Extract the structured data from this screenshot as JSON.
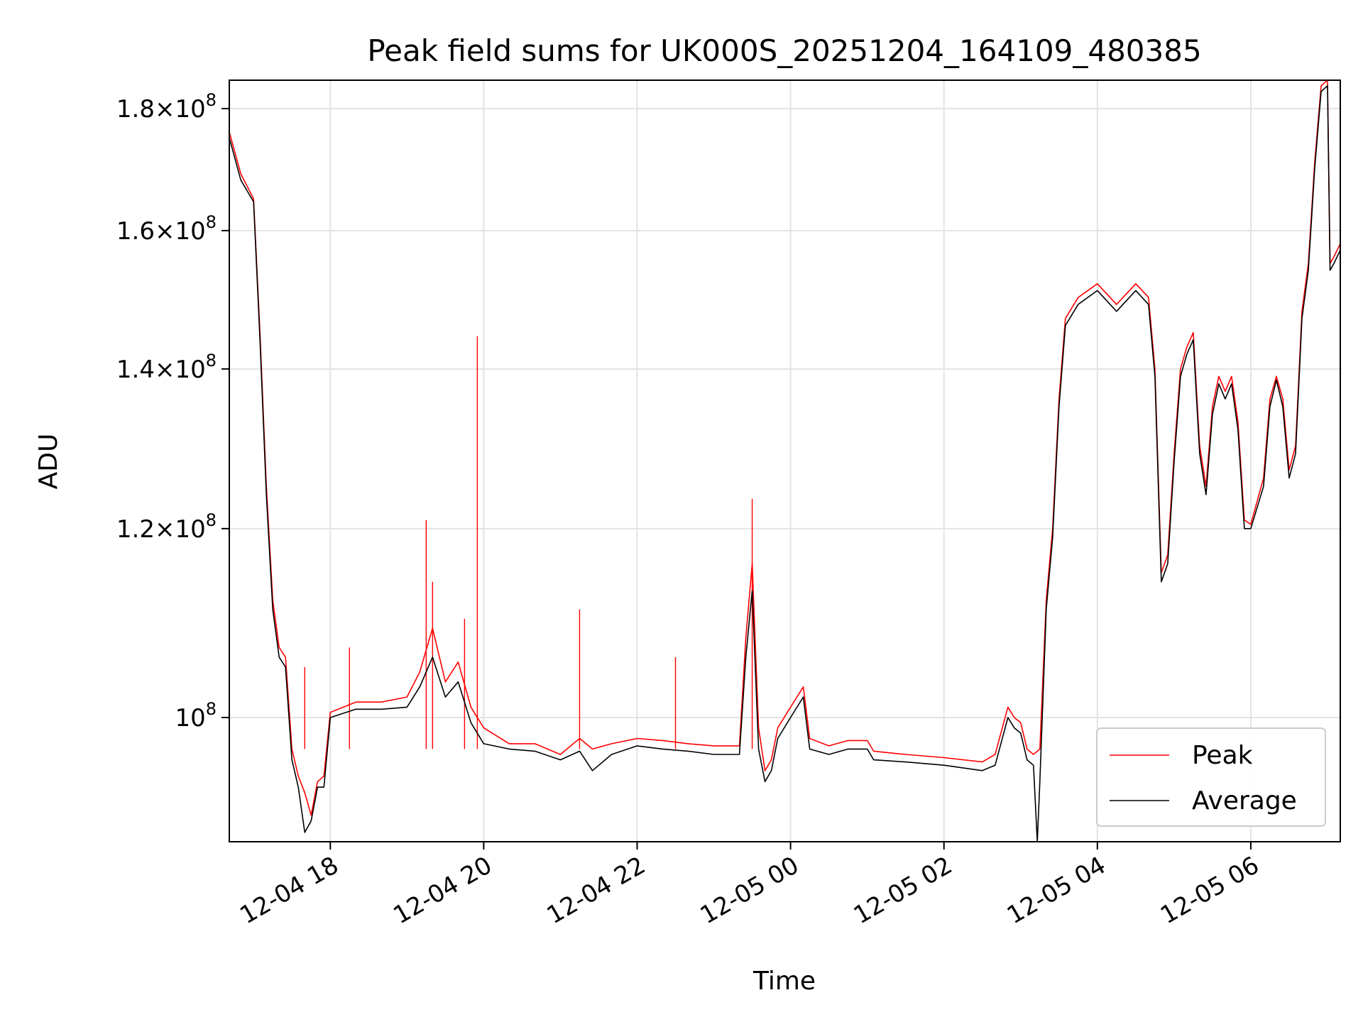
{
  "chart_data": {
    "type": "line",
    "title": "Peak field sums for UK000S_20251204_164109_480385",
    "xlabel": "Time",
    "ylabel": "ADU",
    "yscale": "log",
    "grid": true,
    "legend_position": "lower-right",
    "xlim": [
      "2025-12-04 16:41",
      "2025-12-05 07:10"
    ],
    "ylim": [
      88700000,
      185000000
    ],
    "x_ticks": [
      {
        "value": "2025-12-04 18:00",
        "label": "12-04 18"
      },
      {
        "value": "2025-12-04 20:00",
        "label": "12-04 20"
      },
      {
        "value": "2025-12-04 22:00",
        "label": "12-04 22"
      },
      {
        "value": "2025-12-05 00:00",
        "label": "12-05 00"
      },
      {
        "value": "2025-12-05 02:00",
        "label": "12-05 02"
      },
      {
        "value": "2025-12-05 04:00",
        "label": "12-05 04"
      },
      {
        "value": "2025-12-05 06:00",
        "label": "12-05 06"
      }
    ],
    "y_ticks": [
      {
        "value": 100000000,
        "mantissa": "",
        "exponent": "8"
      },
      {
        "value": 120000000,
        "mantissa": "1.2",
        "exponent": "8"
      },
      {
        "value": 140000000,
        "mantissa": "1.4",
        "exponent": "8"
      },
      {
        "value": 160000000,
        "mantissa": "1.6",
        "exponent": "8"
      },
      {
        "value": 180000000,
        "mantissa": "1.8",
        "exponent": "8"
      }
    ],
    "series": [
      {
        "name": "Peak",
        "color": "#ff0000",
        "points": [
          [
            "2025-12-04 16:41",
            176000000
          ],
          [
            "2025-12-04 16:50",
            169000000
          ],
          [
            "2025-12-04 17:00",
            165000000
          ],
          [
            "2025-12-04 17:05",
            145000000
          ],
          [
            "2025-12-04 17:10",
            125000000
          ],
          [
            "2025-12-04 17:15",
            112000000
          ],
          [
            "2025-12-04 17:20",
            107000000
          ],
          [
            "2025-12-04 17:25",
            106000000
          ],
          [
            "2025-12-04 17:30",
            97000000
          ],
          [
            "2025-12-04 17:35",
            94500000
          ],
          [
            "2025-12-04 17:40",
            93000000
          ],
          [
            "2025-12-04 17:45",
            91000000
          ],
          [
            "2025-12-04 17:50",
            94000000
          ],
          [
            "2025-12-04 17:55",
            94500000
          ],
          [
            "2025-12-04 18:00",
            100500000
          ],
          [
            "2025-12-04 18:20",
            101500000
          ],
          [
            "2025-12-04 18:40",
            101500000
          ],
          [
            "2025-12-04 19:00",
            102000000
          ],
          [
            "2025-12-04 19:10",
            104500000
          ],
          [
            "2025-12-04 19:20",
            109000000
          ],
          [
            "2025-12-04 19:30",
            103500000
          ],
          [
            "2025-12-04 19:40",
            105500000
          ],
          [
            "2025-12-04 19:50",
            101000000
          ],
          [
            "2025-12-04 20:00",
            99000000
          ],
          [
            "2025-12-04 20:20",
            97500000
          ],
          [
            "2025-12-04 20:40",
            97500000
          ],
          [
            "2025-12-04 21:00",
            96500000
          ],
          [
            "2025-12-04 21:15",
            98000000
          ],
          [
            "2025-12-04 21:25",
            97000000
          ],
          [
            "2025-12-04 21:40",
            97500000
          ],
          [
            "2025-12-04 22:00",
            98000000
          ],
          [
            "2025-12-04 22:20",
            97800000
          ],
          [
            "2025-12-04 22:40",
            97500000
          ],
          [
            "2025-12-04 23:00",
            97300000
          ],
          [
            "2025-12-04 23:20",
            97300000
          ],
          [
            "2025-12-04 23:25",
            108000000
          ],
          [
            "2025-12-04 23:30",
            116000000
          ],
          [
            "2025-12-04 23:35",
            99000000
          ],
          [
            "2025-12-04 23:40",
            95000000
          ],
          [
            "2025-12-04 23:45",
            96000000
          ],
          [
            "2025-12-04 23:50",
            99000000
          ],
          [
            "2025-12-05 00:00",
            101000000
          ],
          [
            "2025-12-05 00:10",
            103000000
          ],
          [
            "2025-12-05 00:15",
            98000000
          ],
          [
            "2025-12-05 00:30",
            97300000
          ],
          [
            "2025-12-05 00:45",
            97800000
          ],
          [
            "2025-12-05 01:00",
            97800000
          ],
          [
            "2025-12-05 01:05",
            96800000
          ],
          [
            "2025-12-05 01:30",
            96500000
          ],
          [
            "2025-12-05 02:00",
            96200000
          ],
          [
            "2025-12-05 02:30",
            95800000
          ],
          [
            "2025-12-05 02:40",
            96500000
          ],
          [
            "2025-12-05 02:50",
            101000000
          ],
          [
            "2025-12-05 02:55",
            100000000
          ],
          [
            "2025-12-05 03:00",
            99500000
          ],
          [
            "2025-12-05 03:05",
            97000000
          ],
          [
            "2025-12-05 03:10",
            96500000
          ],
          [
            "2025-12-05 03:15",
            97000000
          ],
          [
            "2025-12-05 03:20",
            112000000
          ],
          [
            "2025-12-05 03:25",
            120000000
          ],
          [
            "2025-12-05 03:30",
            136000000
          ],
          [
            "2025-12-05 03:35",
            147000000
          ],
          [
            "2025-12-05 03:45",
            150000000
          ],
          [
            "2025-12-05 04:00",
            152000000
          ],
          [
            "2025-12-05 04:15",
            149000000
          ],
          [
            "2025-12-05 04:30",
            152000000
          ],
          [
            "2025-12-05 04:40",
            150000000
          ],
          [
            "2025-12-05 04:45",
            140000000
          ],
          [
            "2025-12-05 04:50",
            115000000
          ],
          [
            "2025-12-05 04:55",
            117000000
          ],
          [
            "2025-12-05 05:00",
            129000000
          ],
          [
            "2025-12-05 05:05",
            140000000
          ],
          [
            "2025-12-05 05:10",
            143000000
          ],
          [
            "2025-12-05 05:15",
            145000000
          ],
          [
            "2025-12-05 05:20",
            130000000
          ],
          [
            "2025-12-05 05:25",
            125000000
          ],
          [
            "2025-12-05 05:30",
            135000000
          ],
          [
            "2025-12-05 05:35",
            139000000
          ],
          [
            "2025-12-05 05:40",
            137000000
          ],
          [
            "2025-12-05 05:45",
            139000000
          ],
          [
            "2025-12-05 05:50",
            133000000
          ],
          [
            "2025-12-05 05:55",
            121000000
          ],
          [
            "2025-12-05 06:00",
            120500000
          ],
          [
            "2025-12-05 06:10",
            126000000
          ],
          [
            "2025-12-05 06:15",
            136000000
          ],
          [
            "2025-12-05 06:20",
            139000000
          ],
          [
            "2025-12-05 06:25",
            136000000
          ],
          [
            "2025-12-05 06:30",
            127000000
          ],
          [
            "2025-12-05 06:35",
            130000000
          ],
          [
            "2025-12-05 06:40",
            148000000
          ],
          [
            "2025-12-05 06:45",
            155000000
          ],
          [
            "2025-12-05 06:50",
            171000000
          ],
          [
            "2025-12-05 06:55",
            184000000
          ],
          [
            "2025-12-05 07:00",
            185000000
          ],
          [
            "2025-12-05 07:02",
            155000000
          ],
          [
            "2025-12-05 07:05",
            156000000
          ],
          [
            "2025-12-05 07:10",
            158000000
          ]
        ],
        "spikes": [
          [
            "2025-12-04 19:55",
            144500000
          ],
          [
            "2025-12-04 19:15",
            121000000
          ],
          [
            "2025-12-04 23:30",
            123500000
          ],
          [
            "2025-12-04 21:15",
            111000000
          ],
          [
            "2025-12-04 19:20",
            114000000
          ],
          [
            "2025-12-04 17:40",
            105000000
          ],
          [
            "2025-12-04 18:15",
            107000000
          ],
          [
            "2025-12-04 19:45",
            110000000
          ],
          [
            "2025-12-04 22:30",
            106000000
          ]
        ]
      },
      {
        "name": "Average",
        "color": "#000000",
        "points": [
          [
            "2025-12-04 16:41",
            175000000
          ],
          [
            "2025-12-04 16:50",
            168000000
          ],
          [
            "2025-12-04 17:00",
            164500000
          ],
          [
            "2025-12-04 17:05",
            144000000
          ],
          [
            "2025-12-04 17:10",
            124000000
          ],
          [
            "2025-12-04 17:15",
            111000000
          ],
          [
            "2025-12-04 17:20",
            106000000
          ],
          [
            "2025-12-04 17:25",
            105000000
          ],
          [
            "2025-12-04 17:30",
            96000000
          ],
          [
            "2025-12-04 17:35",
            93500000
          ],
          [
            "2025-12-04 17:40",
            89500000
          ],
          [
            "2025-12-04 17:45",
            90500000
          ],
          [
            "2025-12-04 17:50",
            93500000
          ],
          [
            "2025-12-04 17:55",
            93500000
          ],
          [
            "2025-12-04 18:00",
            100000000
          ],
          [
            "2025-12-04 18:20",
            100800000
          ],
          [
            "2025-12-04 18:40",
            100800000
          ],
          [
            "2025-12-04 19:00",
            101000000
          ],
          [
            "2025-12-04 19:10",
            103000000
          ],
          [
            "2025-12-04 19:20",
            106000000
          ],
          [
            "2025-12-04 19:30",
            102000000
          ],
          [
            "2025-12-04 19:40",
            103500000
          ],
          [
            "2025-12-04 19:50",
            99500000
          ],
          [
            "2025-12-04 20:00",
            97500000
          ],
          [
            "2025-12-04 20:20",
            97000000
          ],
          [
            "2025-12-04 20:40",
            96800000
          ],
          [
            "2025-12-04 21:00",
            96000000
          ],
          [
            "2025-12-04 21:15",
            96800000
          ],
          [
            "2025-12-04 21:25",
            95000000
          ],
          [
            "2025-12-04 21:40",
            96500000
          ],
          [
            "2025-12-04 22:00",
            97300000
          ],
          [
            "2025-12-04 22:20",
            97000000
          ],
          [
            "2025-12-04 22:40",
            96800000
          ],
          [
            "2025-12-04 23:00",
            96500000
          ],
          [
            "2025-12-04 23:20",
            96500000
          ],
          [
            "2025-12-04 23:25",
            106000000
          ],
          [
            "2025-12-04 23:30",
            113000000
          ],
          [
            "2025-12-04 23:35",
            97000000
          ],
          [
            "2025-12-04 23:40",
            94000000
          ],
          [
            "2025-12-04 23:45",
            95000000
          ],
          [
            "2025-12-04 23:50",
            98000000
          ],
          [
            "2025-12-05 00:00",
            100000000
          ],
          [
            "2025-12-05 00:10",
            102000000
          ],
          [
            "2025-12-05 00:15",
            97000000
          ],
          [
            "2025-12-05 00:30",
            96500000
          ],
          [
            "2025-12-05 00:45",
            97000000
          ],
          [
            "2025-12-05 01:00",
            97000000
          ],
          [
            "2025-12-05 01:05",
            96000000
          ],
          [
            "2025-12-05 01:30",
            95800000
          ],
          [
            "2025-12-05 02:00",
            95500000
          ],
          [
            "2025-12-05 02:30",
            95000000
          ],
          [
            "2025-12-05 02:40",
            95500000
          ],
          [
            "2025-12-05 02:50",
            100000000
          ],
          [
            "2025-12-05 02:55",
            99000000
          ],
          [
            "2025-12-05 03:00",
            98500000
          ],
          [
            "2025-12-05 03:05",
            96000000
          ],
          [
            "2025-12-05 03:10",
            95500000
          ],
          [
            "2025-12-05 03:13",
            88700000
          ],
          [
            "2025-12-05 03:15",
            94000000
          ],
          [
            "2025-12-05 03:20",
            111000000
          ],
          [
            "2025-12-05 03:25",
            119000000
          ],
          [
            "2025-12-05 03:30",
            135000000
          ],
          [
            "2025-12-05 03:35",
            146000000
          ],
          [
            "2025-12-05 03:45",
            149000000
          ],
          [
            "2025-12-05 04:00",
            151000000
          ],
          [
            "2025-12-05 04:15",
            148000000
          ],
          [
            "2025-12-05 04:30",
            151000000
          ],
          [
            "2025-12-05 04:40",
            149000000
          ],
          [
            "2025-12-05 04:45",
            139000000
          ],
          [
            "2025-12-05 04:50",
            114000000
          ],
          [
            "2025-12-05 04:55",
            116000000
          ],
          [
            "2025-12-05 05:00",
            128000000
          ],
          [
            "2025-12-05 05:05",
            139000000
          ],
          [
            "2025-12-05 05:10",
            142000000
          ],
          [
            "2025-12-05 05:15",
            144000000
          ],
          [
            "2025-12-05 05:20",
            129000000
          ],
          [
            "2025-12-05 05:25",
            124000000
          ],
          [
            "2025-12-05 05:30",
            134000000
          ],
          [
            "2025-12-05 05:35",
            138000000
          ],
          [
            "2025-12-05 05:40",
            136000000
          ],
          [
            "2025-12-05 05:45",
            138000000
          ],
          [
            "2025-12-05 05:50",
            132000000
          ],
          [
            "2025-12-05 05:55",
            120000000
          ],
          [
            "2025-12-05 06:00",
            120000000
          ],
          [
            "2025-12-05 06:10",
            125000000
          ],
          [
            "2025-12-05 06:15",
            135000000
          ],
          [
            "2025-12-05 06:20",
            138500000
          ],
          [
            "2025-12-05 06:25",
            135000000
          ],
          [
            "2025-12-05 06:30",
            126000000
          ],
          [
            "2025-12-05 06:35",
            129000000
          ],
          [
            "2025-12-05 06:40",
            147000000
          ],
          [
            "2025-12-05 06:45",
            154000000
          ],
          [
            "2025-12-05 06:50",
            170000000
          ],
          [
            "2025-12-05 06:55",
            183000000
          ],
          [
            "2025-12-05 07:00",
            184000000
          ],
          [
            "2025-12-05 07:02",
            154000000
          ],
          [
            "2025-12-05 07:05",
            155000000
          ],
          [
            "2025-12-05 07:10",
            157000000
          ]
        ]
      }
    ]
  }
}
